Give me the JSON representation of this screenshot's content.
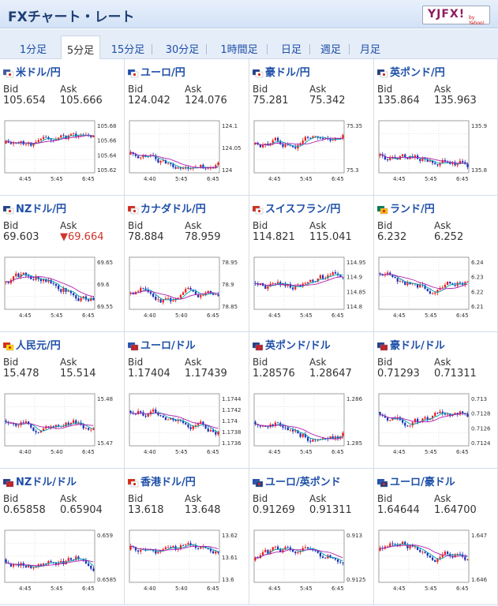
{
  "header": {
    "title": "FXチャート・レート",
    "logo_text": "YJFX!",
    "logo_sub": "by Yahoo!"
  },
  "tabs": [
    {
      "label": "1分足",
      "active": false
    },
    {
      "label": "5分足",
      "active": true
    },
    {
      "label": "15分足",
      "active": false
    },
    {
      "label": "30分足",
      "active": false
    },
    {
      "label": "1時間足",
      "active": false
    },
    {
      "label": "日足",
      "active": false
    },
    {
      "label": "週足",
      "active": false
    },
    {
      "label": "月足",
      "active": false
    }
  ],
  "labels": {
    "bid": "Bid",
    "ask": "Ask"
  },
  "pairs": [
    {
      "name": "米ドル/円",
      "bid": "105.654",
      "ask": "105.666",
      "ask_down": false,
      "flags": [
        "#3c5aa6",
        "#ffffff"
      ],
      "yticks": [
        "105.68",
        "105.66",
        "105.64",
        "105.62"
      ],
      "xticks": [
        "4:45",
        "5:45",
        "6:45"
      ]
    },
    {
      "name": "ユーロ/円",
      "bid": "124.042",
      "ask": "124.076",
      "ask_down": false,
      "flags": [
        "#1f4fb5",
        "#ffffff"
      ],
      "yticks": [
        "124.1",
        "124.05",
        "124"
      ],
      "xticks": [
        "4:40",
        "5:45",
        "6:45"
      ]
    },
    {
      "name": "豪ドル/円",
      "bid": "75.281",
      "ask": "75.342",
      "ask_down": false,
      "flags": [
        "#1f3f8a",
        "#ffffff"
      ],
      "yticks": [
        "75.35",
        "75.3"
      ],
      "xticks": [
        "4:45",
        "5:45",
        "6:45"
      ]
    },
    {
      "name": "英ポンド/円",
      "bid": "135.864",
      "ask": "135.963",
      "ask_down": false,
      "flags": [
        "#1f3f8a",
        "#ffffff"
      ],
      "yticks": [
        "135.9",
        "135.8"
      ],
      "xticks": [
        "4:45",
        "5:45",
        "6:45"
      ]
    },
    {
      "name": "NZドル/円",
      "bid": "69.603",
      "ask": "▼69.664",
      "ask_down": true,
      "flags": [
        "#1f3f8a",
        "#ffffff"
      ],
      "yticks": [
        "69.65",
        "69.6",
        "69.55"
      ],
      "xticks": [
        "4:45",
        "5:45",
        "6:45"
      ]
    },
    {
      "name": "カナダドル/円",
      "bid": "78.884",
      "ask": "78.959",
      "ask_down": false,
      "flags": [
        "#d52b1e",
        "#ffffff"
      ],
      "yticks": [
        "78.95",
        "78.9",
        "78.85"
      ],
      "xticks": [
        "4:40",
        "5:40",
        "6:45"
      ]
    },
    {
      "name": "スイスフラン/円",
      "bid": "114.821",
      "ask": "115.041",
      "ask_down": false,
      "flags": [
        "#d52b1e",
        "#ffffff"
      ],
      "yticks": [
        "114.95",
        "114.9",
        "114.85",
        "114.8"
      ],
      "xticks": [
        "4:45",
        "5:45",
        "6:45"
      ]
    },
    {
      "name": "ランド/円",
      "bid": "6.232",
      "ask": "6.252",
      "ask_down": false,
      "flags": [
        "#007a4d",
        "#ffb612"
      ],
      "yticks": [
        "6.24",
        "6.23",
        "6.22",
        "6.21"
      ],
      "xticks": [
        "4:45",
        "5:45",
        "6:45"
      ]
    },
    {
      "name": "人民元/円",
      "bid": "15.478",
      "ask": "15.514",
      "ask_down": false,
      "flags": [
        "#de2910",
        "#ffde00"
      ],
      "yticks": [
        "15.48",
        "15.47"
      ],
      "xticks": [
        "4:40",
        "5:40",
        "6:45"
      ]
    },
    {
      "name": "ユーロ/ドル",
      "bid": "1.17404",
      "ask": "1.17439",
      "ask_down": false,
      "flags": [
        "#1f4fb5",
        "#b22234"
      ],
      "yticks": [
        "1.1744",
        "1.1742",
        "1.174",
        "1.1738",
        "1.1736"
      ],
      "xticks": [
        "4:40",
        "5:45",
        "6:45"
      ]
    },
    {
      "name": "英ポンド/ドル",
      "bid": "1.28576",
      "ask": "1.28647",
      "ask_down": false,
      "flags": [
        "#1f3f8a",
        "#b22234"
      ],
      "yticks": [
        "1.286",
        "1.285"
      ],
      "xticks": [
        "4:45",
        "5:45",
        "6:45"
      ]
    },
    {
      "name": "豪ドル/ドル",
      "bid": "0.71293",
      "ask": "0.71311",
      "ask_down": false,
      "flags": [
        "#1f3f8a",
        "#b22234"
      ],
      "yticks": [
        "0.713",
        "0.7128",
        "0.7126",
        "0.7124"
      ],
      "xticks": [
        "4:45",
        "5:45",
        "6:45"
      ]
    },
    {
      "name": "NZドル/ドル",
      "bid": "0.65858",
      "ask": "0.65904",
      "ask_down": false,
      "flags": [
        "#1f3f8a",
        "#b22234"
      ],
      "yticks": [
        "0.659",
        "0.6585"
      ],
      "xticks": [
        "4:45",
        "5:45",
        "6:45"
      ]
    },
    {
      "name": "香港ドル/円",
      "bid": "13.618",
      "ask": "13.648",
      "ask_down": false,
      "flags": [
        "#de2910",
        "#ffffff"
      ],
      "yticks": [
        "13.62",
        "13.61",
        "13.6"
      ],
      "xticks": [
        "4:40",
        "5:40",
        "6:45"
      ]
    },
    {
      "name": "ユーロ/英ポンド",
      "bid": "0.91269",
      "ask": "0.91311",
      "ask_down": false,
      "flags": [
        "#1f4fb5",
        "#1f3f8a"
      ],
      "yticks": [
        "0.913",
        "0.9125"
      ],
      "xticks": [
        "4:45",
        "5:45",
        "6:45"
      ]
    },
    {
      "name": "ユーロ/豪ドル",
      "bid": "1.64644",
      "ask": "1.64700",
      "ask_down": false,
      "flags": [
        "#1f4fb5",
        "#1f3f8a"
      ],
      "yticks": [
        "1.647",
        "1.646"
      ],
      "xticks": [
        "4:45",
        "5:45",
        "6:45"
      ]
    }
  ]
}
